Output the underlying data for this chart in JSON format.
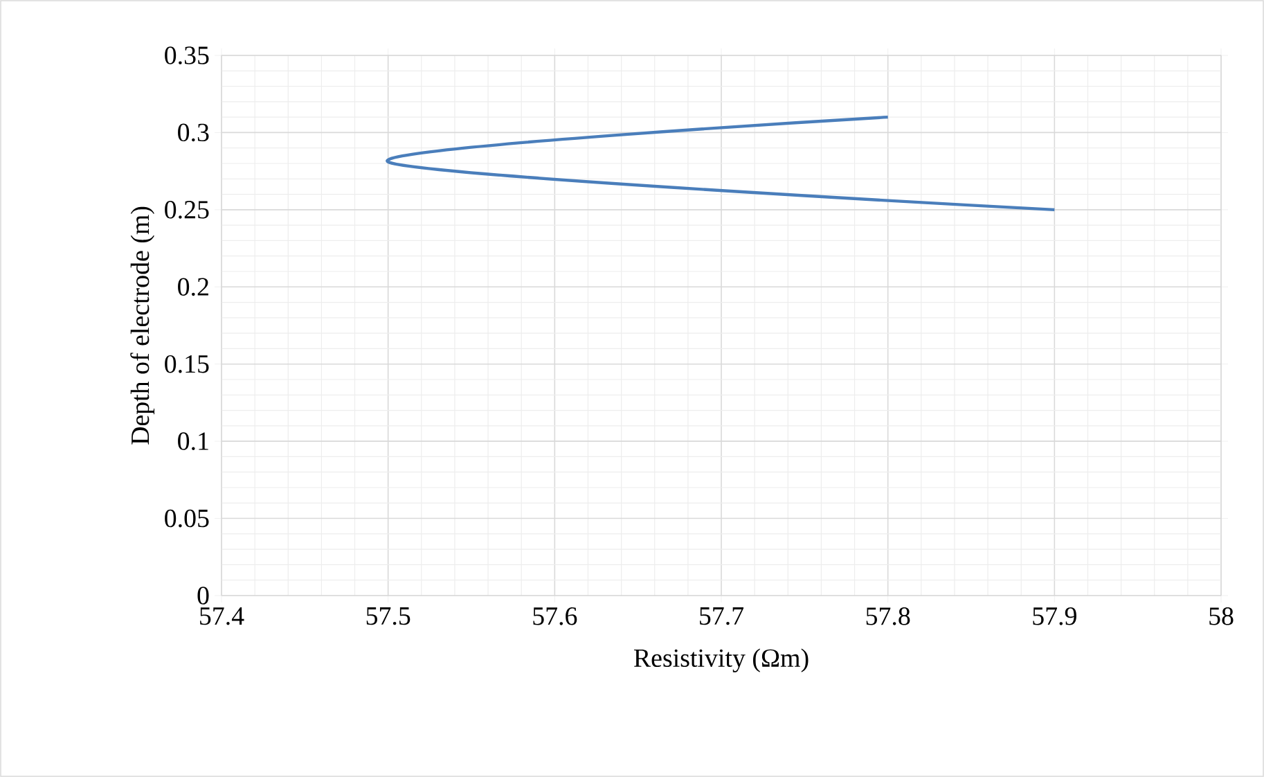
{
  "chart_data": {
    "type": "line",
    "xlabel": "Resistivity (Ωm)",
    "ylabel": "Depth of electrode (m)",
    "x": [
      57.9,
      57.5,
      57.8
    ],
    "series": [
      {
        "color": "#4a7ebb",
        "values": [
          0.25,
          0.281,
          0.31
        ]
      }
    ],
    "xlim": [
      57.4,
      58
    ],
    "xticks": [
      57.4,
      57.5,
      57.6,
      57.7,
      57.8,
      57.9,
      58
    ],
    "ylim": [
      0,
      0.35
    ],
    "yticks": [
      0,
      0.05,
      0.1,
      0.15,
      0.2,
      0.25,
      0.3,
      0.35
    ],
    "grid": true,
    "marker": "none",
    "line_style": "solid"
  }
}
